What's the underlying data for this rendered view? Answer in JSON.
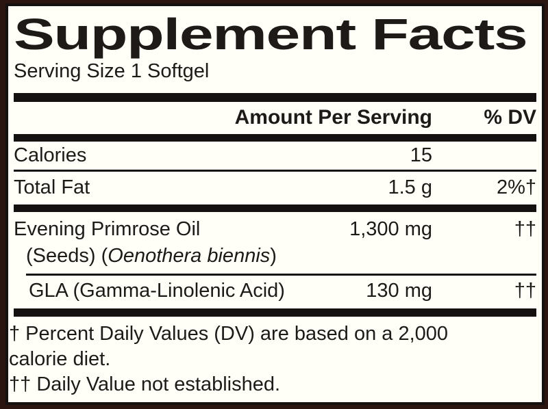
{
  "label": {
    "title": "Supplement Facts",
    "serving_size": "Serving Size 1 Softgel",
    "header": {
      "amount": "Amount Per Serving",
      "dv": "% DV"
    },
    "rows": {
      "calories": {
        "name": "Calories",
        "amount": "15",
        "dv": ""
      },
      "total_fat": {
        "name": "Total Fat",
        "amount": "1.5 g",
        "dv": "2%†"
      },
      "evening_primrose_oil": {
        "name_line1": "Evening Primrose Oil",
        "name_line2_pre": "(Seeds) (",
        "name_line2_italic": "Oenothera biennis",
        "name_line2_post": ")",
        "amount": "1,300 mg",
        "dv": "††"
      },
      "gla": {
        "name": "GLA (Gamma-Linolenic Acid)",
        "amount": "130 mg",
        "dv": "††"
      }
    },
    "footnotes": [
      {
        "lines": [
          "† Percent Daily Values (DV) are based on a 2,000",
          "calorie diet."
        ]
      },
      {
        "lines": [
          "†† Daily Value not established."
        ]
      }
    ]
  },
  "colors": {
    "background": "#2a1511",
    "panel": "#fffef7",
    "ink": "#1d1a18"
  }
}
